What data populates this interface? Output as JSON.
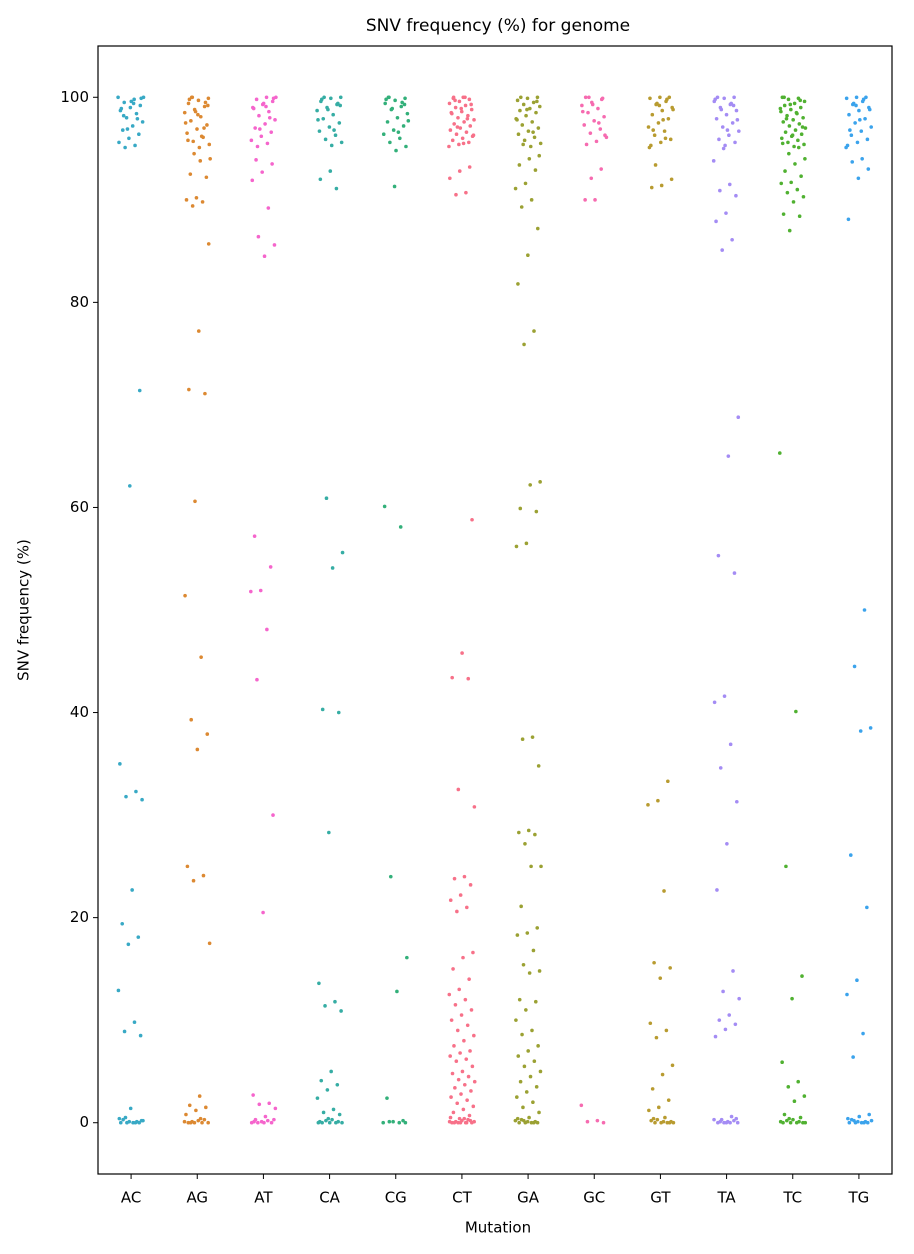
{
  "chart_data": {
    "type": "strip",
    "title": "SNV frequency (%) for genome",
    "xlabel": "Mutation",
    "ylabel": "SNV frequency (%)",
    "categories": [
      "AC",
      "AG",
      "AT",
      "CA",
      "CG",
      "CT",
      "GA",
      "GC",
      "GT",
      "TA",
      "TC",
      "TG"
    ],
    "ylim": [
      -5,
      105
    ],
    "yticks": [
      0,
      20,
      40,
      60,
      80,
      100
    ],
    "groups": [
      {
        "color": "#38a9c5",
        "values": [
          100,
          99.8,
          99.5,
          99.2,
          99,
          98.7,
          98.4,
          98,
          97.6,
          97.2,
          96.8,
          96.4,
          96,
          95.6,
          95.3,
          95.1,
          99.9,
          99.6,
          98.9,
          97.9,
          96.9,
          100,
          99.4,
          98.2,
          71.4,
          62.1,
          35,
          32.3,
          31.8,
          31.5,
          22.7,
          19.4,
          18.1,
          17.4,
          12.9,
          9.8,
          8.9,
          8.5,
          1.4,
          0,
          0.1,
          0,
          0.2,
          0,
          0.3,
          0,
          0.1,
          0.4,
          0,
          0.5,
          0.2
        ]
      },
      {
        "color": "#dc8932",
        "values": [
          100,
          99.9,
          99.7,
          99.4,
          99.1,
          98.8,
          98.5,
          98.1,
          97.7,
          97.3,
          96.9,
          96.5,
          96.1,
          95.7,
          95.4,
          95.1,
          99.8,
          99.5,
          98.6,
          97.5,
          96.2,
          100,
          99.2,
          98.3,
          95.8,
          97,
          94.5,
          94,
          93.8,
          92.5,
          92.2,
          90.2,
          90,
          89.8,
          89.4,
          85.7,
          77.2,
          71.5,
          71.1,
          60.6,
          51.4,
          45.4,
          39.3,
          37.9,
          36.4,
          25,
          24.1,
          23.6,
          17.5,
          2.6,
          1.7,
          1.5,
          1.2,
          0.8,
          0,
          0.1,
          0,
          0.2,
          0,
          0.3,
          0,
          0.1,
          0.4,
          0
        ]
      },
      {
        "color": "#f565cc",
        "values": [
          100,
          99.8,
          99.6,
          99.3,
          99,
          98.6,
          98.2,
          97.8,
          97.4,
          97,
          96.6,
          96.2,
          95.8,
          95.5,
          95.2,
          99.9,
          99.4,
          98.9,
          98,
          96.9,
          100,
          99.1,
          93.9,
          93.5,
          92.7,
          91.9,
          89.2,
          86.4,
          85.6,
          84.5,
          57.2,
          54.2,
          51.9,
          51.8,
          48.1,
          43.2,
          30,
          20.5,
          2.7,
          1.9,
          1.8,
          1.4,
          0.6,
          0.3,
          0,
          0.1,
          0,
          0.2,
          0,
          0.3,
          0,
          0.1
        ]
      },
      {
        "color": "#36ada4",
        "values": [
          100,
          99.9,
          99.6,
          99.3,
          99,
          98.7,
          98.3,
          97.9,
          97.5,
          97.1,
          96.7,
          96.3,
          95.9,
          95.6,
          95.3,
          99.8,
          99.4,
          98.8,
          97.8,
          96.8,
          100,
          99.2,
          92.8,
          92,
          91.1,
          60.9,
          55.6,
          54.1,
          40.3,
          40,
          28.3,
          13.6,
          11.8,
          11.4,
          10.9,
          5,
          4.1,
          3.7,
          3.2,
          2.4,
          1.3,
          1,
          0.8,
          0,
          0.1,
          0,
          0.2,
          0,
          0.3,
          0,
          0.1,
          0.4,
          0
        ]
      },
      {
        "color": "#33b07a",
        "values": [
          100,
          99.9,
          99.7,
          99.4,
          99.1,
          98.8,
          98.4,
          98,
          97.6,
          97.2,
          96.8,
          96.4,
          96,
          95.6,
          95.2,
          94.8,
          99.8,
          99.5,
          98.9,
          97.7,
          96.6,
          100,
          99.3,
          91.3,
          60.1,
          58.1,
          24,
          16.1,
          12.8,
          2.4,
          0.2,
          0.1,
          0,
          0,
          0.1,
          0
        ]
      },
      {
        "color": "#f77189",
        "values": [
          100,
          99.9,
          99.8,
          99.6,
          99.4,
          99.2,
          99,
          98.8,
          98.6,
          98.4,
          98.2,
          98,
          97.8,
          97.6,
          97.4,
          97.2,
          97,
          96.8,
          96.6,
          96.4,
          96.2,
          96,
          95.8,
          95.6,
          95.4,
          95.2,
          100,
          99.7,
          99.3,
          98.9,
          98.5,
          97.9,
          97.1,
          96.3,
          95.5,
          100,
          93.2,
          92.8,
          92.1,
          90.7,
          90.5,
          58.8,
          45.8,
          43.4,
          43.3,
          32.5,
          30.8,
          24,
          23.8,
          23.2,
          22.2,
          21.7,
          21,
          20.6,
          16.6,
          16.1,
          15,
          14,
          13,
          12.5,
          12,
          11.5,
          11,
          10.5,
          10,
          9.5,
          9,
          8.5,
          8,
          7.5,
          7,
          6.8,
          6.5,
          6.2,
          6,
          5.5,
          5,
          4.8,
          4.5,
          4.2,
          4,
          3.7,
          3.4,
          3.1,
          2.8,
          2.5,
          2.2,
          1.9,
          1.6,
          1.3,
          1,
          0.7,
          0.4,
          0.1,
          0,
          0.1,
          0,
          0.2,
          0,
          0.3,
          0,
          0.1,
          0.4,
          0,
          0.2,
          0,
          0.5,
          0
        ]
      },
      {
        "color": "#9ba133",
        "values": [
          100,
          99.9,
          99.7,
          99.5,
          99.3,
          99.1,
          98.9,
          98.7,
          98.5,
          98.2,
          97.9,
          97.6,
          97.3,
          97,
          96.7,
          96.4,
          96.1,
          95.8,
          95.5,
          95.2,
          100,
          99.6,
          98.8,
          97.8,
          96.6,
          95.4,
          94.3,
          94,
          93.4,
          92.9,
          91.6,
          91.1,
          90,
          89.3,
          87.2,
          84.6,
          81.8,
          77.2,
          75.9,
          62.5,
          62.2,
          59.9,
          59.6,
          56.5,
          56.2,
          37.6,
          37.4,
          34.8,
          28.5,
          28.3,
          28.1,
          27.2,
          25,
          25,
          21.1,
          19,
          18.5,
          18.3,
          16.8,
          15.4,
          14.8,
          14.6,
          12,
          11.8,
          11,
          10,
          9,
          8.6,
          7.5,
          7,
          6.5,
          6,
          5.5,
          5,
          4.5,
          4,
          3.5,
          3,
          2.5,
          2,
          1.5,
          1,
          0.5,
          0,
          0.1,
          0,
          0.2,
          0,
          0.3,
          0,
          0.1,
          0.4,
          0,
          0.2
        ]
      },
      {
        "color": "#f66bb0",
        "values": [
          100,
          99.8,
          99.5,
          99.2,
          98.9,
          98.5,
          98.1,
          97.7,
          97.3,
          96.9,
          96.5,
          96.1,
          95.7,
          95.4,
          99.9,
          99.3,
          98.6,
          97.5,
          100,
          96.3,
          90,
          90,
          93,
          92.1,
          1.7,
          0.2,
          0.1,
          0
        ]
      },
      {
        "color": "#b89b30",
        "values": [
          100,
          99.9,
          99.6,
          99.3,
          99,
          98.7,
          98.3,
          97.9,
          97.5,
          97.1,
          96.7,
          96.3,
          95.9,
          95.6,
          95.3,
          99.8,
          99.4,
          98.8,
          97.8,
          96.8,
          100,
          99.2,
          95.1,
          96,
          93.4,
          92,
          91.4,
          91.2,
          33.3,
          31.4,
          31,
          22.6,
          15.6,
          15.1,
          14.1,
          9.7,
          9,
          8.3,
          5.6,
          4.7,
          3.3,
          2.2,
          1.5,
          1.2,
          0.5,
          0,
          0.1,
          0,
          0.2,
          0,
          0.3,
          0,
          0.1,
          0.4,
          0
        ]
      },
      {
        "color": "#a48cf4",
        "values": [
          100,
          99.9,
          99.6,
          99.3,
          99,
          98.7,
          98.3,
          97.9,
          97.5,
          97.1,
          96.7,
          96.3,
          95.9,
          95.6,
          95.3,
          99.8,
          99.4,
          98.8,
          97.8,
          96.8,
          100,
          99.2,
          95,
          93.8,
          91.5,
          90.9,
          90.4,
          88.7,
          87.9,
          86.1,
          85.1,
          68.8,
          65,
          55.3,
          53.6,
          41.6,
          41,
          36.9,
          34.6,
          31.3,
          27.2,
          22.7,
          14.8,
          12.8,
          12.1,
          10.5,
          10,
          9.6,
          9.1,
          8.4,
          0.6,
          0.3,
          0,
          0.1,
          0,
          0.2,
          0,
          0.3,
          0,
          0.1,
          0.4,
          0
        ]
      },
      {
        "color": "#50b131",
        "values": [
          100,
          99.9,
          99.8,
          99.6,
          99.4,
          99.2,
          99,
          98.8,
          98.6,
          98.4,
          98.2,
          98,
          97.8,
          97.6,
          97.4,
          97.2,
          97,
          96.8,
          96.6,
          96.4,
          96.2,
          96,
          95.8,
          95.6,
          95.4,
          95.2,
          100,
          99.7,
          99.3,
          98.9,
          98.5,
          97.9,
          97.1,
          96.3,
          95.5,
          95.1,
          94.5,
          94,
          93.5,
          92.8,
          92.3,
          91.7,
          91.6,
          91,
          90.7,
          90.3,
          89.8,
          88.6,
          88.4,
          87,
          65.3,
          40.1,
          25,
          14.3,
          12.1,
          5.9,
          4,
          3.5,
          2.6,
          2.1,
          0.8,
          0.5,
          0,
          0.1,
          0,
          0.2,
          0,
          0.3,
          0,
          0.1,
          0.4,
          0
        ]
      },
      {
        "color": "#3ba3ec",
        "values": [
          100,
          99.9,
          99.6,
          99.3,
          99,
          98.7,
          98.3,
          97.9,
          97.5,
          97.1,
          96.7,
          96.3,
          95.9,
          95.6,
          95.3,
          99.8,
          99.4,
          98.8,
          97.8,
          96.8,
          100,
          99.2,
          95.1,
          94,
          93.7,
          93,
          92.1,
          88.1,
          50,
          44.5,
          38.5,
          38.2,
          26.1,
          21,
          13.9,
          12.5,
          8.7,
          6.4,
          0.8,
          0.6,
          0,
          0.1,
          0,
          0.2,
          0,
          0.3,
          0,
          0.1,
          0.4,
          0,
          0.2
        ]
      }
    ]
  }
}
